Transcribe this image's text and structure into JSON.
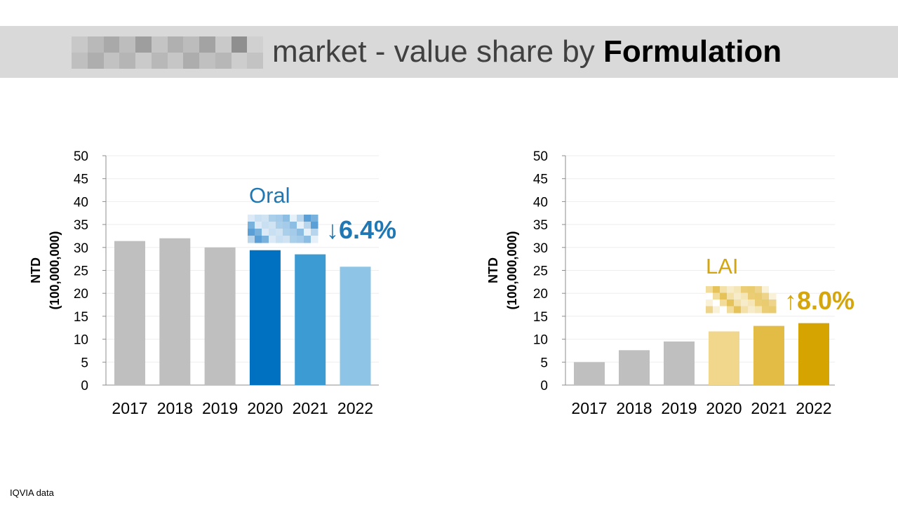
{
  "title": {
    "redacted": true,
    "main": "market - value share by",
    "bold": "Formulation"
  },
  "footnote": "IQVIA data",
  "colors": {
    "gray": "#bfbfbf",
    "oral": [
      "#0070c0",
      "#3d9bd4",
      "#8ec4e5"
    ],
    "lai": [
      "#f0d78c",
      "#e3bc45",
      "#d6a400"
    ],
    "oral_text": "#1f78b4",
    "lai_text": "#d4a50d"
  },
  "chart_data": [
    {
      "type": "bar",
      "categories": [
        "2017",
        "2018",
        "2019",
        "2020",
        "2021",
        "2022"
      ],
      "values": [
        31.4,
        32.0,
        30.0,
        29.4,
        28.5,
        25.8
      ],
      "ylabel": "NTD (100,000,000)",
      "ylabel_lines": [
        "NTD",
        "(100,000,000)"
      ],
      "ylim": [
        0,
        50
      ],
      "yticks": [
        0,
        5,
        10,
        15,
        20,
        25,
        30,
        35,
        40,
        45,
        50
      ],
      "grid": true,
      "annotation": {
        "label": "Oral",
        "change": "↓6.4%"
      }
    },
    {
      "type": "bar",
      "categories": [
        "2017",
        "2018",
        "2019",
        "2020",
        "2021",
        "2022"
      ],
      "values": [
        5.0,
        7.6,
        9.5,
        11.7,
        12.9,
        13.5
      ],
      "ylabel": "NTD (100,000,000)",
      "ylabel_lines": [
        "NTD",
        "(100,000,000)"
      ],
      "ylim": [
        0,
        50
      ],
      "yticks": [
        0,
        5,
        10,
        15,
        20,
        25,
        30,
        35,
        40,
        45,
        50
      ],
      "grid": true,
      "annotation": {
        "label": "LAI",
        "change": "↑8.0%"
      }
    }
  ]
}
